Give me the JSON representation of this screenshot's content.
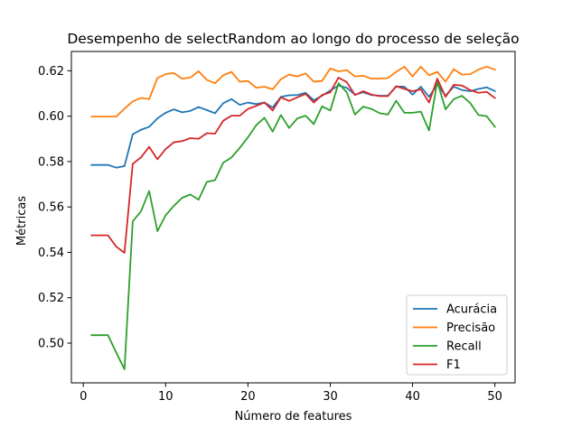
{
  "chart_data": {
    "type": "line",
    "title": "Desempenho de selectRandom ao longo do processo de seleção",
    "xlabel": "Número de features",
    "ylabel": "Métricas",
    "xlim": [
      -1.45,
      52.45
    ],
    "ylim": [
      0.4825,
      0.6285
    ],
    "xticks": [
      0,
      10,
      20,
      30,
      40,
      50
    ],
    "yticks": [
      0.5,
      0.52,
      0.54,
      0.56,
      0.58,
      0.6,
      0.62
    ],
    "ytick_labels": [
      "0.50",
      "0.52",
      "0.54",
      "0.56",
      "0.58",
      "0.60",
      "0.62"
    ],
    "grid": false,
    "legend_position": "lower right",
    "x": [
      1,
      2,
      3,
      4,
      5,
      6,
      7,
      8,
      9,
      10,
      11,
      12,
      13,
      14,
      15,
      16,
      17,
      18,
      19,
      20,
      21,
      22,
      23,
      24,
      25,
      26,
      27,
      28,
      29,
      30,
      31,
      32,
      33,
      34,
      35,
      36,
      37,
      38,
      39,
      40,
      41,
      42,
      43,
      44,
      45,
      46,
      47,
      48,
      49,
      50
    ],
    "series": [
      {
        "name": "Acurácia",
        "color": "#1f77b4",
        "values": [
          0.5785,
          0.5785,
          0.5785,
          0.5773,
          0.578,
          0.592,
          0.594,
          0.5953,
          0.599,
          0.6015,
          0.603,
          0.6017,
          0.6023,
          0.604,
          0.6027,
          0.6013,
          0.6057,
          0.6075,
          0.605,
          0.606,
          0.6053,
          0.606,
          0.6038,
          0.6085,
          0.6092,
          0.6093,
          0.6103,
          0.607,
          0.609,
          0.6113,
          0.6135,
          0.6125,
          0.6095,
          0.6105,
          0.6093,
          0.609,
          0.609,
          0.613,
          0.613,
          0.6095,
          0.613,
          0.6085,
          0.614,
          0.609,
          0.613,
          0.6115,
          0.611,
          0.612,
          0.6127,
          0.611
        ]
      },
      {
        "name": "Precisão",
        "color": "#ff7f0e",
        "values": [
          0.5998,
          0.5998,
          0.5998,
          0.5998,
          0.6033,
          0.6065,
          0.608,
          0.6075,
          0.6168,
          0.6185,
          0.619,
          0.6165,
          0.617,
          0.6198,
          0.616,
          0.6145,
          0.618,
          0.6195,
          0.6152,
          0.6155,
          0.6125,
          0.613,
          0.6118,
          0.6163,
          0.6183,
          0.6175,
          0.6188,
          0.6152,
          0.6155,
          0.621,
          0.6197,
          0.6203,
          0.6175,
          0.6178,
          0.6165,
          0.6165,
          0.6168,
          0.6195,
          0.6218,
          0.6175,
          0.6218,
          0.618,
          0.6195,
          0.6152,
          0.6207,
          0.6183,
          0.6185,
          0.6205,
          0.6218,
          0.6205
        ]
      },
      {
        "name": "Recall",
        "color": "#2ca02c",
        "values": [
          0.5035,
          0.5035,
          0.5035,
          0.4958,
          0.4885,
          0.5537,
          0.558,
          0.567,
          0.5493,
          0.5563,
          0.5605,
          0.564,
          0.5655,
          0.5632,
          0.571,
          0.5718,
          0.5795,
          0.5818,
          0.586,
          0.5907,
          0.596,
          0.5993,
          0.5932,
          0.6005,
          0.5948,
          0.599,
          0.6002,
          0.5965,
          0.6043,
          0.6025,
          0.6145,
          0.6105,
          0.6007,
          0.6042,
          0.6032,
          0.6013,
          0.6007,
          0.6068,
          0.6015,
          0.6015,
          0.602,
          0.5937,
          0.6153,
          0.603,
          0.6075,
          0.609,
          0.6058,
          0.6005,
          0.6,
          0.5953
        ]
      },
      {
        "name": "F1",
        "color": "#d62728",
        "values": [
          0.5475,
          0.5475,
          0.5475,
          0.5425,
          0.5398,
          0.579,
          0.5818,
          0.5865,
          0.581,
          0.5855,
          0.5885,
          0.589,
          0.5903,
          0.59,
          0.5925,
          0.5923,
          0.598,
          0.6002,
          0.6002,
          0.6032,
          0.6045,
          0.606,
          0.6025,
          0.6083,
          0.6067,
          0.6083,
          0.6098,
          0.606,
          0.6093,
          0.6105,
          0.617,
          0.615,
          0.6093,
          0.611,
          0.6095,
          0.6088,
          0.6088,
          0.6132,
          0.612,
          0.611,
          0.6118,
          0.606,
          0.6165,
          0.6085,
          0.6138,
          0.6135,
          0.6115,
          0.6103,
          0.6107,
          0.608
        ]
      }
    ]
  }
}
